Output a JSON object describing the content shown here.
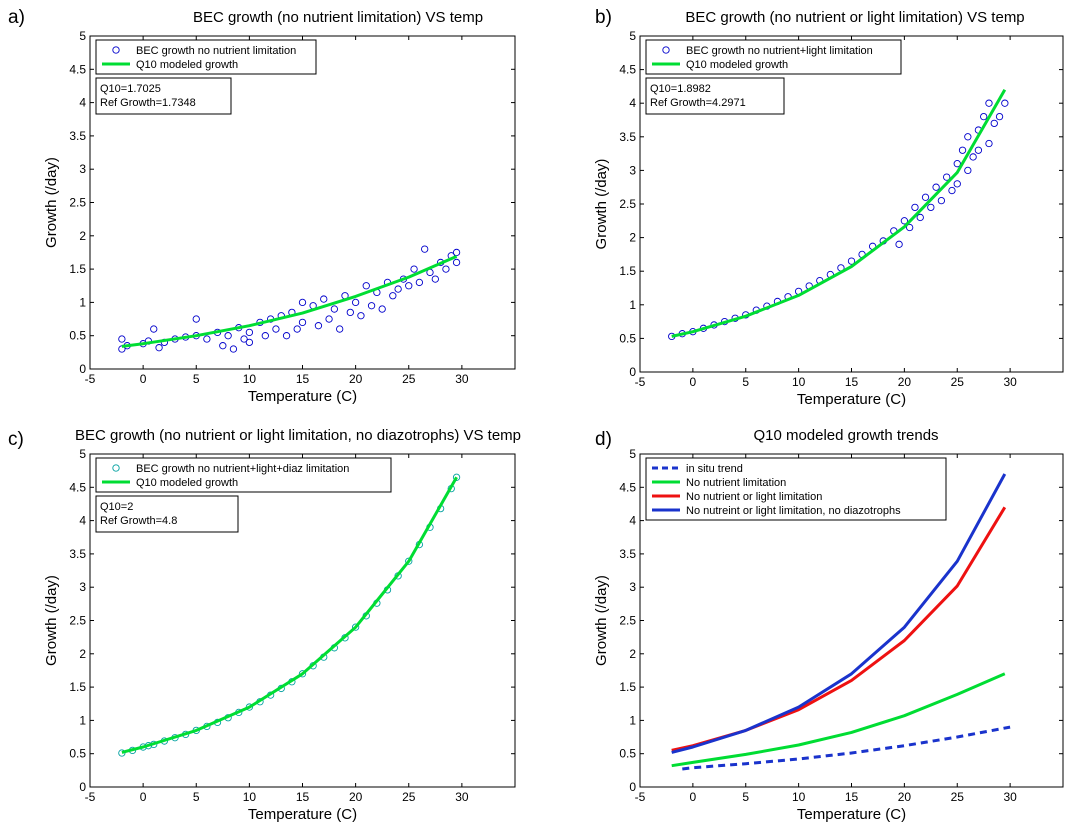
{
  "chart_data": [
    {
      "type": "scatter",
      "panel_label": "a)",
      "title": "BEC growth (no nutrient limitation) VS temp",
      "xlabel": "Temperature (C)",
      "ylabel": "Growth (/day)",
      "xlim": [
        -5,
        35
      ],
      "ylim": [
        0,
        5
      ],
      "xticks": [
        -5,
        0,
        5,
        10,
        15,
        20,
        25,
        30
      ],
      "yticks": [
        0,
        0.5,
        1,
        1.5,
        2,
        2.5,
        3,
        3.5,
        4,
        4.5,
        5
      ],
      "grid": false,
      "legend_position": "top-left",
      "legend": [
        "BEC growth no nutrient limitation",
        "Q10 modeled growth"
      ],
      "annotation": [
        "Q10=1.7025",
        "Ref Growth=1.7348"
      ],
      "series": [
        {
          "name": "BEC growth no nutrient limitation",
          "kind": "markers",
          "color": "#0000cc",
          "x": [
            -2,
            -2,
            -1.5,
            0,
            0.5,
            1,
            1.5,
            2,
            3,
            4,
            5,
            5,
            6,
            7,
            7.5,
            8,
            8.5,
            9,
            9.5,
            10,
            10,
            11,
            11.5,
            12,
            12.5,
            13,
            13.5,
            14,
            14.5,
            15,
            15,
            16,
            16.5,
            17,
            17.5,
            18,
            18.5,
            19,
            19.5,
            20,
            20.5,
            21,
            21.5,
            22,
            22.5,
            23,
            23.5,
            24,
            24.5,
            25,
            25.5,
            26,
            26.5,
            27,
            27.5,
            28,
            28.5,
            29,
            29.5,
            29.5
          ],
          "y": [
            0.3,
            0.45,
            0.35,
            0.38,
            0.42,
            0.6,
            0.32,
            0.4,
            0.45,
            0.48,
            0.5,
            0.75,
            0.45,
            0.55,
            0.35,
            0.5,
            0.3,
            0.62,
            0.45,
            0.55,
            0.4,
            0.7,
            0.5,
            0.75,
            0.6,
            0.8,
            0.5,
            0.85,
            0.6,
            1.0,
            0.7,
            0.95,
            0.65,
            1.05,
            0.75,
            0.9,
            0.6,
            1.1,
            0.85,
            1.0,
            0.8,
            1.25,
            0.95,
            1.15,
            0.9,
            1.3,
            1.1,
            1.2,
            1.35,
            1.25,
            1.5,
            1.3,
            1.8,
            1.45,
            1.35,
            1.6,
            1.5,
            1.7,
            1.75,
            1.6
          ]
        },
        {
          "name": "Q10 modeled growth",
          "kind": "line",
          "color": "#00dd33",
          "x": [
            -2,
            0,
            5,
            10,
            15,
            20,
            25,
            29.5
          ],
          "y": [
            0.34,
            0.38,
            0.5,
            0.65,
            0.84,
            1.09,
            1.38,
            1.69
          ]
        }
      ]
    },
    {
      "type": "scatter",
      "panel_label": "b)",
      "title": "BEC growth (no nutrient or light limitation) VS temp",
      "xlabel": "Temperature (C)",
      "ylabel": "Growth (/day)",
      "xlim": [
        -5,
        35
      ],
      "ylim": [
        0,
        5
      ],
      "xticks": [
        -5,
        0,
        5,
        10,
        15,
        20,
        25,
        30
      ],
      "yticks": [
        0,
        0.5,
        1,
        1.5,
        2,
        2.5,
        3,
        3.5,
        4,
        4.5,
        5
      ],
      "grid": false,
      "legend_position": "top-left",
      "legend": [
        "BEC growth no nutrient+light limitation",
        "Q10 modeled growth"
      ],
      "annotation": [
        "Q10=1.8982",
        "Ref Growth=4.2971"
      ],
      "series": [
        {
          "name": "BEC growth no nutrient+light limitation",
          "kind": "markers",
          "color": "#0000cc",
          "x": [
            -2,
            -1,
            0,
            1,
            2,
            3,
            4,
            5,
            6,
            7,
            8,
            9,
            10,
            11,
            12,
            13,
            14,
            15,
            16,
            17,
            18,
            19,
            19.5,
            20,
            20.5,
            21,
            21.5,
            22,
            22.5,
            23,
            23.5,
            24,
            24.5,
            25,
            25,
            25.5,
            26,
            26,
            26.5,
            27,
            27,
            27.5,
            28,
            28,
            28.5,
            29,
            29.5
          ],
          "y": [
            0.53,
            0.57,
            0.6,
            0.65,
            0.7,
            0.75,
            0.8,
            0.85,
            0.92,
            0.98,
            1.05,
            1.12,
            1.2,
            1.28,
            1.36,
            1.45,
            1.55,
            1.65,
            1.75,
            1.87,
            1.95,
            2.1,
            1.9,
            2.25,
            2.15,
            2.45,
            2.3,
            2.6,
            2.45,
            2.75,
            2.55,
            2.9,
            2.7,
            3.1,
            2.8,
            3.3,
            3.0,
            3.5,
            3.2,
            3.6,
            3.3,
            3.8,
            3.4,
            4.0,
            3.7,
            3.8,
            4.0
          ]
        },
        {
          "name": "Q10 modeled growth",
          "kind": "line",
          "color": "#00dd33",
          "x": [
            -2,
            0,
            5,
            10,
            15,
            20,
            25,
            29.5
          ],
          "y": [
            0.53,
            0.6,
            0.83,
            1.14,
            1.57,
            2.16,
            2.97,
            4.2
          ]
        }
      ]
    },
    {
      "type": "scatter",
      "panel_label": "c)",
      "title": "BEC growth (no nutrient or light limitation, no diazotrophs) VS temp",
      "xlabel": "Temperature (C)",
      "ylabel": "Growth (/day)",
      "xlim": [
        -5,
        35
      ],
      "ylim": [
        0,
        5
      ],
      "xticks": [
        -5,
        0,
        5,
        10,
        15,
        20,
        25,
        30
      ],
      "yticks": [
        0,
        0.5,
        1,
        1.5,
        2,
        2.5,
        3,
        3.5,
        4,
        4.5,
        5
      ],
      "grid": false,
      "legend_position": "top-left",
      "legend": [
        "BEC growth no nutrient+light+diaz limitation",
        "Q10 modeled growth"
      ],
      "annotation": [
        "Q10=2",
        "Ref Growth=4.8"
      ],
      "series": [
        {
          "name": "BEC growth no nutrient+light+diaz limitation",
          "kind": "markers",
          "color": "#00a0a0",
          "x": [
            -2,
            -1,
            0,
            0.5,
            1,
            2,
            3,
            4,
            5,
            6,
            7,
            8,
            9,
            10,
            11,
            12,
            13,
            14,
            15,
            16,
            17,
            18,
            19,
            20,
            21,
            22,
            23,
            24,
            25,
            26,
            27,
            28,
            29,
            29.5
          ],
          "y": [
            0.51,
            0.55,
            0.6,
            0.62,
            0.64,
            0.69,
            0.74,
            0.79,
            0.85,
            0.91,
            0.97,
            1.04,
            1.12,
            1.2,
            1.28,
            1.38,
            1.48,
            1.58,
            1.7,
            1.82,
            1.95,
            2.09,
            2.24,
            2.4,
            2.57,
            2.76,
            2.96,
            3.17,
            3.39,
            3.64,
            3.9,
            4.18,
            4.48,
            4.65
          ]
        },
        {
          "name": "Q10 modeled growth",
          "kind": "line",
          "color": "#00dd33",
          "x": [
            -2,
            0,
            5,
            10,
            15,
            20,
            25,
            29.5
          ],
          "y": [
            0.52,
            0.6,
            0.85,
            1.2,
            1.7,
            2.4,
            3.39,
            4.65
          ]
        }
      ]
    },
    {
      "type": "line",
      "panel_label": "d)",
      "title": "Q10 modeled growth trends",
      "xlabel": "Temperature (C)",
      "ylabel": "Growth (/day)",
      "xlim": [
        -5,
        35
      ],
      "ylim": [
        0,
        5
      ],
      "xticks": [
        -5,
        0,
        5,
        10,
        15,
        20,
        25,
        30
      ],
      "yticks": [
        0,
        0.5,
        1,
        1.5,
        2,
        2.5,
        3,
        3.5,
        4,
        4.5,
        5
      ],
      "grid": false,
      "legend_position": "top-left",
      "legend": [
        "in situ trend",
        "No nutrient limitation",
        "No nutrient or light limitation",
        "No nutreint or light limitation, no diazotrophs"
      ],
      "series": [
        {
          "name": "in situ trend",
          "kind": "dashed",
          "color": "#1a33cc",
          "x": [
            -1,
            0,
            5,
            10,
            15,
            20,
            25,
            30
          ],
          "y": [
            0.27,
            0.29,
            0.35,
            0.42,
            0.51,
            0.62,
            0.75,
            0.9
          ]
        },
        {
          "name": "No nutrient limitation",
          "kind": "line",
          "color": "#00dd33",
          "x": [
            -2,
            0,
            5,
            10,
            15,
            20,
            25,
            29.5
          ],
          "y": [
            0.32,
            0.37,
            0.49,
            0.63,
            0.82,
            1.07,
            1.39,
            1.7
          ]
        },
        {
          "name": "No nutrient or light limitation",
          "kind": "line",
          "color": "#ee1111",
          "x": [
            -2,
            0,
            5,
            10,
            15,
            20,
            25,
            29.5
          ],
          "y": [
            0.55,
            0.62,
            0.85,
            1.16,
            1.6,
            2.2,
            3.02,
            4.2
          ]
        },
        {
          "name": "No nutreint or light limitation, no diazotrophs",
          "kind": "line",
          "color": "#1a33cc",
          "x": [
            -2,
            0,
            5,
            10,
            15,
            20,
            25,
            29.5
          ],
          "y": [
            0.52,
            0.6,
            0.85,
            1.2,
            1.7,
            2.4,
            3.39,
            4.7
          ]
        }
      ]
    }
  ]
}
